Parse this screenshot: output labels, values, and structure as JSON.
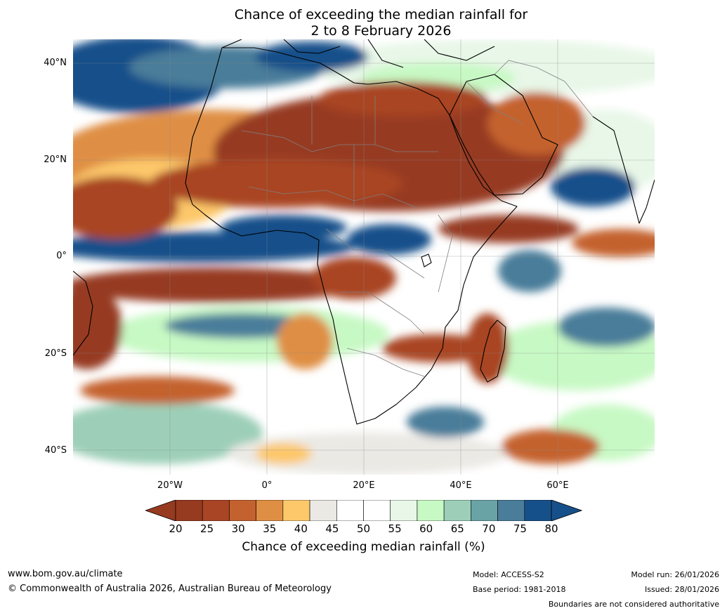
{
  "title": {
    "line1": "Chance of exceeding the median rainfall for",
    "line2": "2 to 8 February 2026"
  },
  "axes": {
    "lat_labels": [
      "40°N",
      "20°N",
      "0°",
      "20°S",
      "40°S"
    ],
    "lon_labels": [
      "20°W",
      "0°",
      "20°E",
      "40°E",
      "60°E"
    ]
  },
  "colorbar": {
    "title": "Chance of exceeding median rainfall (%)",
    "ticks": [
      "20",
      "25",
      "30",
      "35",
      "40",
      "45",
      "50",
      "55",
      "60",
      "65",
      "70",
      "75",
      "80"
    ],
    "colors": [
      "#963a20",
      "#a94524",
      "#c4622f",
      "#df8f44",
      "#fdc86a",
      "#ebe9e4",
      "#ffffff",
      "#ffffff",
      "#e8f7e8",
      "#c7f9c4",
      "#9dcfb8",
      "#6aa3a5",
      "#4a7d9a",
      "#16508a"
    ],
    "low_color": "#963a20",
    "high_color": "#16508a"
  },
  "map_colors": {
    "dry_dark": "#963a20",
    "dry": "#a94524",
    "dry_mid": "#c4622f",
    "dry_light": "#df8f44",
    "dry_yellow": "#fdc86a",
    "neutral_grey": "#ebe9e4",
    "wet_pale": "#e8f7e8",
    "wet_green": "#c7f9c4",
    "wet_teal": "#9dcfb8",
    "wet_blue": "#6aa3a5",
    "wet_steel": "#4a7d9a",
    "wet_dark": "#16508a",
    "coast": "#000000",
    "borders": "#808080"
  },
  "footer": {
    "website": "www.bom.gov.au/climate",
    "copyright": "© Commonwealth of Australia 2026, Australian Bureau of Meteorology",
    "model": "Model: ACCESS-S2",
    "base_period": "Base period: 1981-2018",
    "model_run": "Model run: 26/01/2026",
    "issued": "Issued: 28/01/2026",
    "disclaimer": "Boundaries are not considered authoritative"
  }
}
